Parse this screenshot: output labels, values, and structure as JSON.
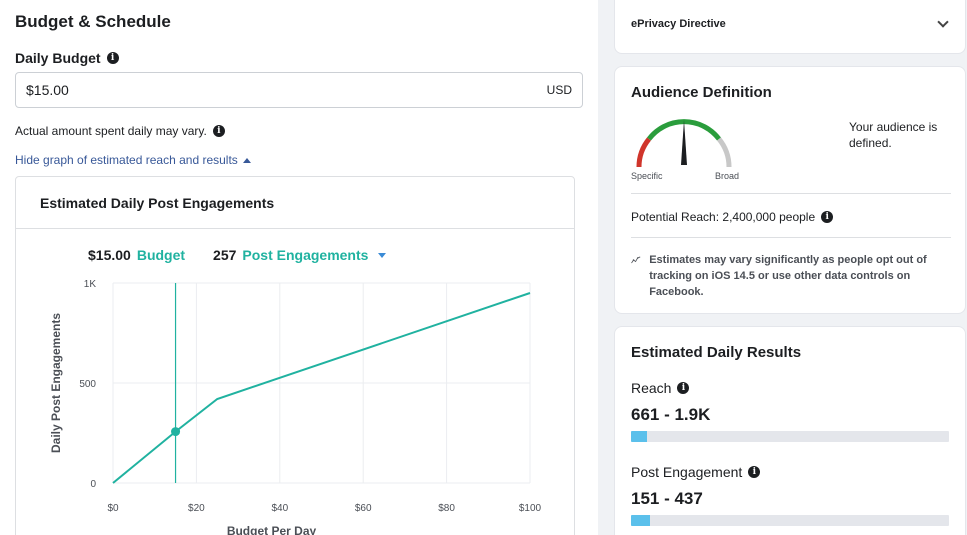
{
  "budget_section": {
    "title": "Budget & Schedule",
    "daily_budget_label": "Daily Budget",
    "budget_value": "$15.00",
    "currency": "USD",
    "note": "Actual amount spent daily may vary.",
    "hide_graph_link": "Hide graph of estimated reach and results"
  },
  "graph_card": {
    "title": "Estimated Daily Post Engagements",
    "budget_amount": "$15.00",
    "budget_label": "Budget",
    "engagements_value": "257",
    "engagements_label": "Post Engagements"
  },
  "chart_data": {
    "type": "line",
    "title": "",
    "xlabel": "Budget Per Day",
    "ylabel": "Daily Post Engagements",
    "x_ticks": [
      "$0",
      "$20",
      "$40",
      "$60",
      "$80",
      "$100"
    ],
    "y_ticks": [
      "0",
      "500",
      "1K"
    ],
    "xlim": [
      0,
      100
    ],
    "ylim": [
      0,
      1000
    ],
    "series": [
      {
        "x": [
          0,
          15,
          25,
          100
        ],
        "y": [
          0,
          257,
          420,
          950
        ]
      }
    ],
    "marker": {
      "x": 15,
      "y": 257
    },
    "color": "#20b2a0"
  },
  "privacy_card": {
    "label": "ePrivacy Directive"
  },
  "audience_card": {
    "title": "Audience Definition",
    "gauge_left": "Specific",
    "gauge_right": "Broad",
    "status": "Your audience is defined.",
    "potential_reach": "Potential Reach: 2,400,000 people",
    "estimate_note": "Estimates may vary significantly as people opt out of tracking on iOS 14.5 or use other data controls on Facebook."
  },
  "results_card": {
    "title": "Estimated Daily Results",
    "metrics": [
      {
        "label": "Reach",
        "value": "661 - 1.9K",
        "fill": 0.05
      },
      {
        "label": "Post Engagement",
        "value": "151 - 437",
        "fill": 0.06
      }
    ]
  },
  "colors": {
    "accent": "#20b2a0",
    "link": "#385898",
    "bar": "#5bc0eb"
  }
}
